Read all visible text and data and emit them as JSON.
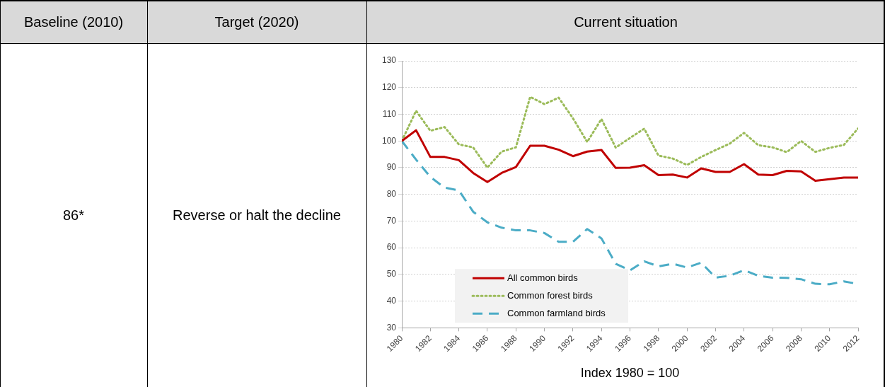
{
  "chart_data": {
    "type": "line",
    "xlabel": "Index 1980 = 100",
    "annotations": [
      "Baseline (2010)",
      "Target (2020)",
      "Current situation",
      "86*",
      "Reverse or halt the decline"
    ],
    "x": [
      1980,
      1981,
      1982,
      1983,
      1984,
      1985,
      1986,
      1987,
      1988,
      1989,
      1990,
      1991,
      1992,
      1993,
      1994,
      1995,
      1996,
      1997,
      1998,
      1999,
      2000,
      2001,
      2002,
      2003,
      2004,
      2005,
      2006,
      2007,
      2008,
      2009,
      2010,
      2011,
      2012
    ],
    "series": [
      {
        "name": "All common birds",
        "color": "#c00000",
        "line_style": "solid",
        "values": [
          100,
          104,
          94,
          94,
          92.8,
          88,
          84.6,
          88,
          90.2,
          98.2,
          98.2,
          96.7,
          94.3,
          96,
          96.6,
          89.9,
          90,
          90.9,
          87.2,
          87.4,
          86.3,
          89.7,
          88.4,
          88.4,
          91.3,
          87.4,
          87.2,
          88.8,
          88.6,
          85.1,
          85.7,
          86.3,
          86.3
        ]
      },
      {
        "name": "Common forest birds",
        "color": "#9bbb59",
        "line_style": "dotted",
        "values": [
          100,
          111.3,
          103.8,
          105.2,
          98.7,
          97.6,
          90,
          96,
          97.6,
          116.5,
          113.8,
          116.2,
          108.5,
          99.6,
          108.2,
          97.5,
          101.1,
          104.6,
          94.5,
          93.4,
          91,
          94,
          96.6,
          99,
          103,
          98.4,
          97.6,
          95.8,
          100,
          95.9,
          97.4,
          98.5,
          104.7
        ]
      },
      {
        "name": "Common farmland birds",
        "color": "#4bacc6",
        "line_style": "dashed",
        "values": [
          100,
          93,
          86.5,
          82.5,
          81.5,
          73.5,
          69.5,
          67.5,
          66.5,
          66.5,
          65.5,
          62.2,
          62.2,
          67,
          63.5,
          54,
          51.5,
          54.9,
          53,
          54,
          52.6,
          54.4,
          48.8,
          49.5,
          51.6,
          49.5,
          48.8,
          48.7,
          48.2,
          46.5,
          46.3,
          47.4,
          46.4
        ]
      }
    ],
    "xlim": [
      1980,
      2012
    ],
    "xticks": [
      1980,
      1982,
      1984,
      1986,
      1988,
      1990,
      1992,
      1994,
      1996,
      1998,
      2000,
      2002,
      2004,
      2006,
      2008,
      2010,
      2012
    ],
    "ylim": [
      30,
      130
    ],
    "yticks": [
      30,
      40,
      50,
      60,
      70,
      80,
      90,
      100,
      110,
      120,
      130
    ],
    "grid": "y",
    "legend": "bottom left",
    "marker": "none"
  }
}
